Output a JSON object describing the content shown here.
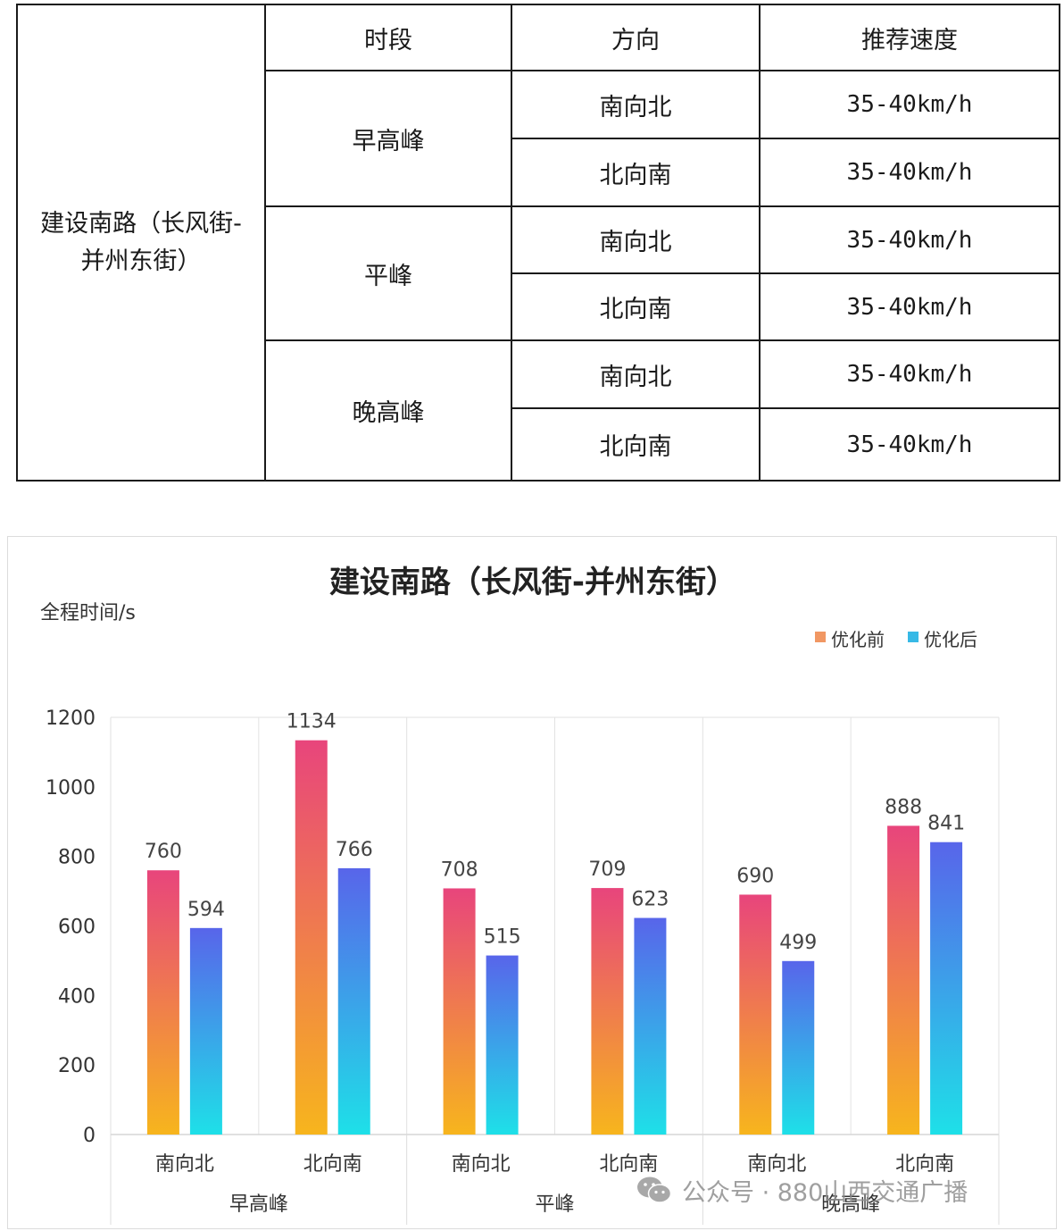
{
  "table": {
    "road": "建设南路（长风街-并州东街）",
    "headers": [
      "时段",
      "方向",
      "推荐速度"
    ],
    "groups": [
      {
        "period": "早高峰",
        "rows": [
          {
            "direction": "南向北",
            "speed": "35-40km/h"
          },
          {
            "direction": "北向南",
            "speed": "35-40km/h"
          }
        ]
      },
      {
        "period": "平峰",
        "rows": [
          {
            "direction": "南向北",
            "speed": "35-40km/h"
          },
          {
            "direction": "北向南",
            "speed": "35-40km/h"
          }
        ]
      },
      {
        "period": "晚高峰",
        "rows": [
          {
            "direction": "南向北",
            "speed": "35-40km/h"
          },
          {
            "direction": "北向南",
            "speed": "35-40km/h"
          }
        ]
      }
    ]
  },
  "chart_data": {
    "type": "bar",
    "title": "建设南路（长风街-并州东街）",
    "ylabel": "全程时间/s",
    "xlabel": "",
    "ylim": [
      0,
      1200
    ],
    "yticks": [
      0,
      200,
      400,
      600,
      800,
      1000,
      1200
    ],
    "grid": "vertical-group-separators",
    "legend_position": "top-right",
    "categories": [
      "南向北",
      "北向南",
      "南向北",
      "北向南",
      "南向北",
      "北向南"
    ],
    "groups": [
      {
        "label": "早高峰",
        "span": 2
      },
      {
        "label": "平峰",
        "span": 2
      },
      {
        "label": "晚高峰",
        "span": 2
      }
    ],
    "series": [
      {
        "name": "优化前",
        "values": [
          760,
          1134,
          708,
          709,
          690,
          888
        ],
        "color_top": "#e8457c",
        "color_bottom": "#f7b51d"
      },
      {
        "name": "优化后",
        "values": [
          594,
          766,
          515,
          623,
          499,
          841
        ],
        "color_top": "#5865ea",
        "color_bottom": "#1ee0e8"
      }
    ]
  },
  "watermark": {
    "text": "公众号 · 880山西交通广播",
    "icon": "wechat-icon"
  }
}
